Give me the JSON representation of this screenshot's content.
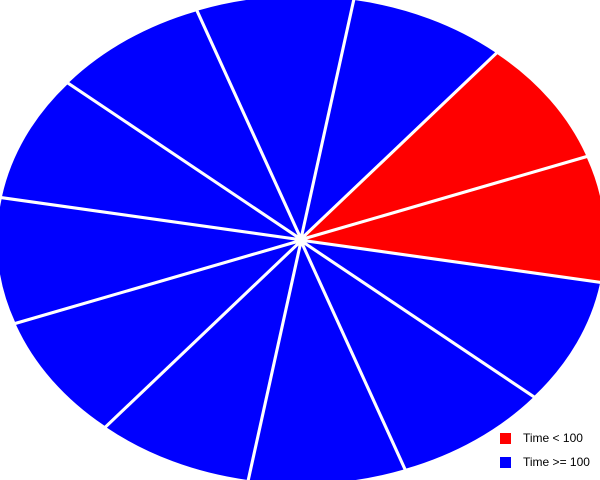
{
  "chart_data": {
    "type": "pie",
    "style": "exploded",
    "slices": [
      {
        "group": "Time < 100",
        "value": 1
      },
      {
        "group": "Time < 100",
        "value": 1
      },
      {
        "group": "Time >= 100",
        "value": 1
      },
      {
        "group": "Time >= 100",
        "value": 1
      },
      {
        "group": "Time >= 100",
        "value": 1
      },
      {
        "group": "Time >= 100",
        "value": 1
      },
      {
        "group": "Time >= 100",
        "value": 1
      },
      {
        "group": "Time >= 100",
        "value": 1
      },
      {
        "group": "Time >= 100",
        "value": 1
      },
      {
        "group": "Time >= 100",
        "value": 1
      },
      {
        "group": "Time >= 100",
        "value": 1
      },
      {
        "group": "Time >= 100",
        "value": 1
      }
    ],
    "legend": {
      "placement": "bottom-right",
      "items": [
        {
          "label": "Time < 100",
          "color": "#ff0000"
        },
        {
          "label": "Time >= 100",
          "color": "#0000ff"
        }
      ]
    },
    "colors": {
      "Time < 100": "#ff0000",
      "Time >= 100": "#0000ff"
    }
  }
}
